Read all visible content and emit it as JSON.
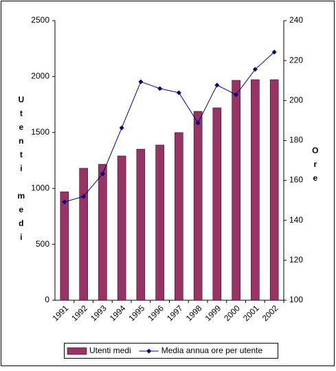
{
  "chart_data": {
    "type": "combo",
    "y_label": "Utenti medi",
    "y2_label": "Ore",
    "categories": [
      "1991",
      "1992",
      "1993",
      "1994",
      "1995",
      "1996",
      "1997",
      "1998",
      "1999",
      "2000",
      "2001",
      "2002"
    ],
    "series": [
      {
        "name": "Utenti medi",
        "type": "bar",
        "color": "#993366",
        "values": [
          970,
          1180,
          1216,
          1290,
          1351,
          1388,
          1499,
          1689,
          1720,
          1966,
          1972,
          1972
        ]
      },
      {
        "name": "Media annua ore per utente",
        "type": "line",
        "axis": "y2",
        "color": "#000080",
        "values": [
          149.2,
          152,
          163.3,
          186.3,
          209.4,
          206,
          203.9,
          188.8,
          207.7,
          202.9,
          215.6,
          224.2
        ]
      }
    ],
    "ylim": [
      0,
      2500
    ],
    "yticks": [
      0,
      500,
      1000,
      1500,
      2000,
      2500
    ],
    "y2lim": [
      100,
      240
    ],
    "y2ticks": [
      100,
      120,
      140,
      160,
      180,
      200,
      220,
      240
    ],
    "grid": false,
    "legend": "bottom"
  }
}
